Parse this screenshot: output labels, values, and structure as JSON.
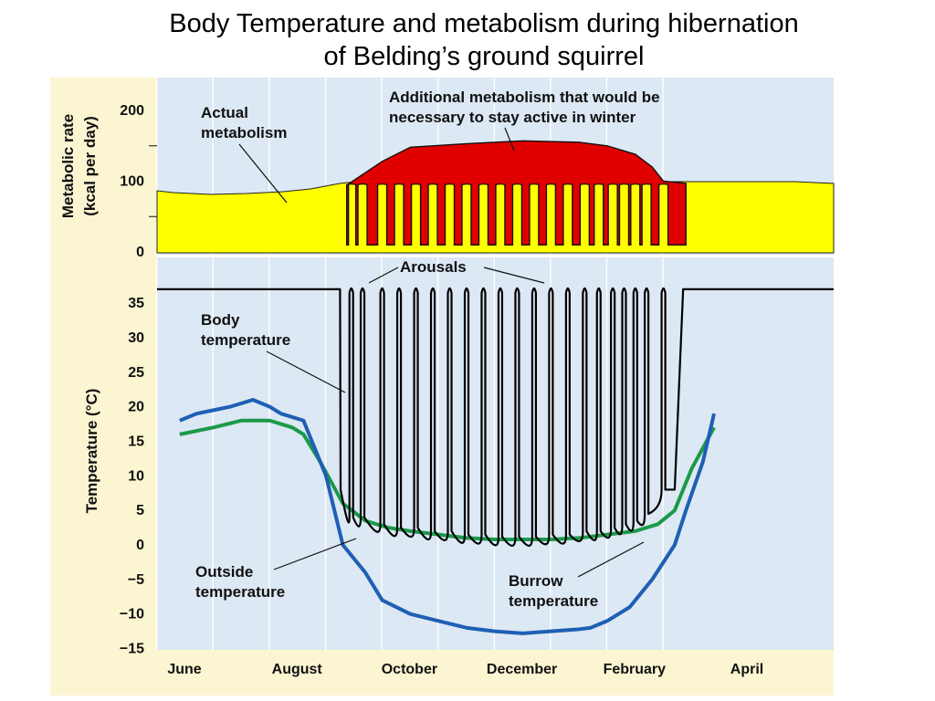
{
  "title": {
    "line1": "Body Temperature and metabolism during hibernation",
    "line2": "of Belding’s ground squirrel"
  },
  "colors": {
    "plot_bg": "#dce8f3",
    "gridline": "#ffffff",
    "actual_metabolism_fill": "#ffff00",
    "additional_metabolism_fill": "#e00000",
    "body_temperature": "#000000",
    "outside_temperature": "#1e5fb4",
    "burrow_temperature": "#1a9a4a",
    "month_band": "#fbf5d2"
  },
  "chart_data": [
    {
      "type": "area",
      "ylabel": "Metabolic rate (kcal per day)",
      "ylim": [
        0,
        250
      ],
      "yticks": [
        "200",
        "100",
        "0"
      ],
      "grid": true,
      "series": [
        {
          "name": "Actual metabolism",
          "x": [
            0,
            0.3,
            1,
            1.5,
            2,
            2.5,
            2.7,
            2.85,
            2.9
          ],
          "y": [
            84,
            82,
            80,
            82,
            84,
            88,
            92,
            95,
            96
          ]
        },
        {
          "name": "Additional metabolism that would be necessary to stay active in winter",
          "x": [
            2.9,
            3.5,
            4,
            5,
            6,
            7,
            7.5,
            8,
            8.3,
            8.5,
            8.9
          ],
          "y": [
            96,
            128,
            148,
            153,
            157,
            155,
            150,
            138,
            120,
            100,
            97
          ]
        }
      ],
      "hibernation_metabolism_baseline": 10,
      "annotations": [
        "Actual metabolism",
        "Additional metabolism that would be necessary to stay active in winter"
      ]
    },
    {
      "type": "line",
      "ylabel": "Temperature (°C)",
      "ylim": [
        -15,
        37
      ],
      "yticks": [
        35,
        30,
        25,
        20,
        15,
        10,
        5,
        0,
        -5,
        -10,
        -15
      ],
      "xticks": [
        "June",
        "August",
        "October",
        "December",
        "February",
        "April"
      ],
      "grid": true,
      "series": [
        {
          "name": "Body temperature",
          "x": [
            0,
            2.75,
            2.76,
            2.95,
            3.15,
            3.5,
            3.8,
            4.1,
            4.4,
            4.7,
            5,
            5.3,
            5.6,
            5.9,
            6.2,
            6.5,
            6.8,
            7.1,
            7.35,
            7.6,
            7.8,
            8,
            8.2,
            8.5,
            8.85,
            9.2
          ],
          "y": [
            37,
            37,
            8,
            4,
            4,
            3,
            2.5,
            2.5,
            2,
            2,
            1.5,
            1.5,
            1.2,
            1.2,
            1.2,
            1.5,
            1.5,
            2,
            2,
            2.5,
            3,
            3.5,
            4.5,
            8,
            37,
            37
          ],
          "arousal_peaks_x": [
            2.95,
            3.15,
            3.5,
            3.8,
            4.1,
            4.4,
            4.7,
            5,
            5.3,
            5.6,
            5.9,
            6.2,
            6.5,
            6.8,
            7.1,
            7.35,
            7.6,
            7.8,
            8,
            8.2,
            8.5
          ],
          "arousal_peak_y": 37
        },
        {
          "name": "Outside temperature",
          "x": [
            -0.1,
            0.2,
            0.5,
            0.8,
            1.2,
            1.5,
            1.7,
            1.9,
            2.1,
            2.5,
            2.8,
            3.2,
            3.5,
            4,
            4.5,
            5,
            5.5,
            6,
            6.5,
            7,
            7.2,
            7.5,
            7.9,
            8.3,
            8.7,
            8.9,
            9.2,
            9.4
          ],
          "y": [
            18,
            19,
            19.5,
            20,
            21,
            20,
            19,
            18.5,
            18,
            10,
            0,
            -4,
            -8,
            -10,
            -11,
            -12,
            -12.5,
            -12.8,
            -12.5,
            -12.2,
            -12,
            -11,
            -9,
            -5,
            0,
            5,
            12,
            19
          ]
        },
        {
          "name": "Burrow temperature",
          "x": [
            -0.1,
            0.5,
            1,
            1.5,
            1.9,
            2.1,
            2.4,
            2.8,
            3.2,
            3.6,
            4,
            4.5,
            5,
            5.5,
            6,
            6.5,
            7,
            7.5,
            8,
            8.4,
            8.7,
            9,
            9.4
          ],
          "y": [
            16,
            17,
            18,
            18,
            17,
            16,
            12,
            6,
            3.5,
            2.5,
            2,
            1.5,
            1,
            0.8,
            0.8,
            0.8,
            1,
            1.5,
            2,
            3,
            5,
            11,
            17
          ]
        }
      ],
      "annotations": [
        "Arousals",
        "Body temperature",
        "Outside temperature",
        "Burrow temperature"
      ]
    }
  ],
  "labels": {
    "metabolic_axis": [
      "Metabolic rate",
      "(kcal per day)"
    ],
    "temperature_axis": "Temperature (°C)",
    "actual_metabolism": [
      "Actual",
      "metabolism"
    ],
    "additional_metabolism": [
      "Additional metabolism that would be",
      "necessary to stay active in winter"
    ],
    "arousals": "Arousals",
    "body_temperature": [
      "Body",
      "temperature"
    ],
    "outside_temperature": [
      "Outside",
      "temperature"
    ],
    "burrow_temperature": [
      "Burrow",
      "temperature"
    ]
  }
}
